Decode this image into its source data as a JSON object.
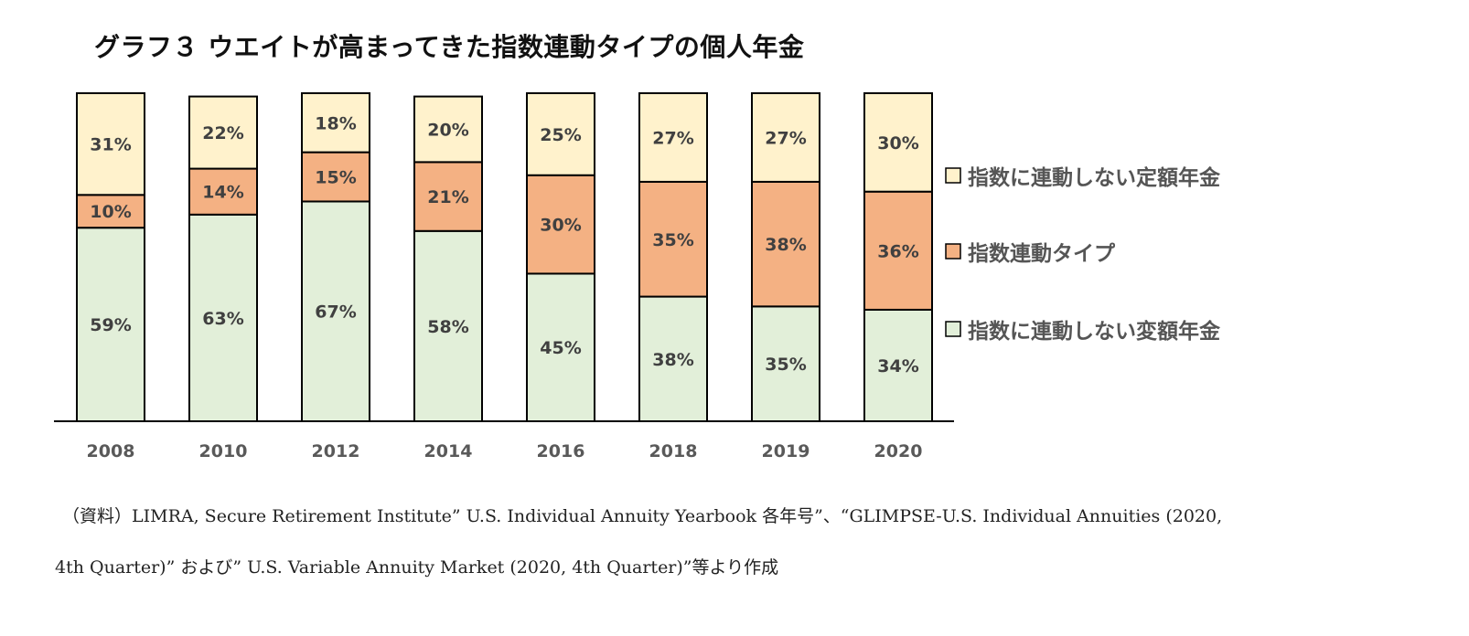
{
  "title": "グラフ３ ウエイトが高まってきた指数連動タイプの個人年金",
  "chart_data": {
    "type": "bar",
    "stacked": true,
    "categories": [
      "2008",
      "2010",
      "2012",
      "2014",
      "2016",
      "2018",
      "2019",
      "2020"
    ],
    "series": [
      {
        "name": "指数に連動しない変額年金",
        "color": "#e2efd9",
        "values": [
          59,
          63,
          67,
          58,
          45,
          38,
          35,
          34
        ],
        "labels": [
          "59%",
          "63%",
          "67%",
          "58%",
          "45%",
          "38%",
          "35%",
          "34%"
        ]
      },
      {
        "name": "指数連動タイプ",
        "color": "#f4b183",
        "values": [
          10,
          14,
          15,
          21,
          30,
          35,
          38,
          36
        ],
        "labels": [
          "10%",
          "14%",
          "15%",
          "21%",
          "30%",
          "35%",
          "38%",
          "36%"
        ]
      },
      {
        "name": "指数に連動しない定額年金",
        "color": "#fff2cc",
        "values": [
          31,
          22,
          18,
          20,
          25,
          27,
          27,
          30
        ],
        "labels": [
          "31%",
          "22%",
          "18%",
          "20%",
          "25%",
          "27%",
          "27%",
          "30%"
        ]
      }
    ],
    "legend_order": [
      2,
      1,
      0
    ],
    "legend_position": "right",
    "ylim": [
      0,
      100
    ],
    "grid": false
  },
  "source_note": {
    "line1": "（資料）LIMRA, Secure Retirement Institute” U.S. Individual Annuity Yearbook 各年号”、“GLIMPSE-U.S. Individual Annuities (2020,",
    "line2": "4th Quarter)” および” U.S. Variable Annuity Market (2020, 4th Quarter)”等より作成"
  }
}
